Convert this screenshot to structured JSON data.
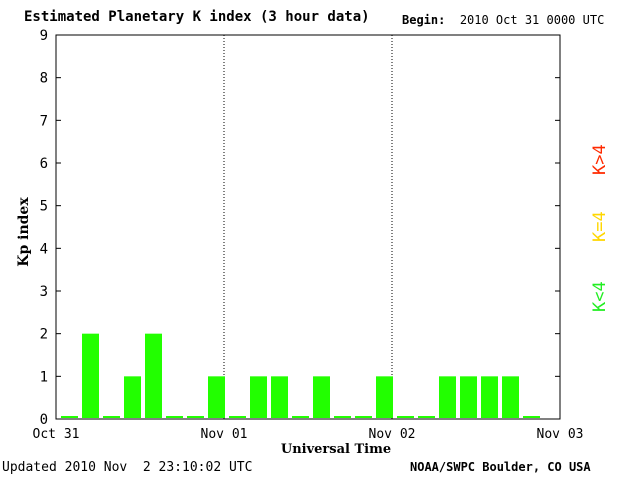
{
  "header": {
    "title": "Estimated Planetary K index (3 hour data)",
    "begin_label": "Begin:",
    "begin_value": "2010 Oct 31 0000 UTC"
  },
  "footer": {
    "updated": "Updated 2010 Nov  2 23:10:02 UTC",
    "credit": "NOAA/SWPC Boulder, CO USA"
  },
  "legend": [
    {
      "label": "K>4",
      "color": "#ff2a00"
    },
    {
      "label": "K=4",
      "color": "#ffd700"
    },
    {
      "label": "K<4",
      "color": "#22ee22"
    }
  ],
  "chart_data": {
    "type": "bar",
    "title": "Estimated Planetary K index (3 hour data)",
    "xlabel": "Universal Time",
    "ylabel": "Kp index",
    "ylim": [
      0,
      9
    ],
    "yticks": [
      0,
      1,
      2,
      3,
      4,
      5,
      6,
      7,
      8,
      9
    ],
    "xtick_labels": [
      "Oct 31",
      "Nov 01",
      "Nov 02",
      "Nov 03"
    ],
    "bar_color": "#22ff00",
    "interval_hours": 3,
    "values": [
      0,
      2,
      0,
      1,
      2,
      0,
      0,
      1,
      0,
      1,
      1,
      0,
      1,
      0,
      0,
      1,
      0,
      0,
      1,
      1,
      1,
      1,
      0
    ]
  }
}
